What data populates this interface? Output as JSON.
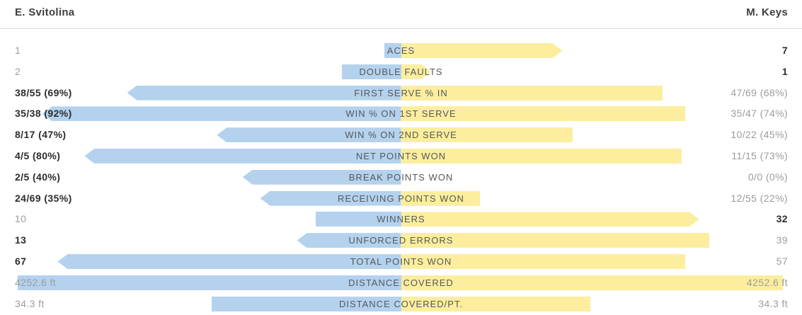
{
  "header": {
    "left_player": "E. Svitolina",
    "right_player": "M. Keys"
  },
  "colors": {
    "left_bar": "#b4d2ee",
    "right_bar": "#fcee9e",
    "label_text": "#56575b",
    "winner_text": "#2b2c2e",
    "normal_text": "#9c9c9c",
    "divider": "#e0e0e1",
    "header_text": "#3e3f42"
  },
  "chart_data": {
    "type": "bar",
    "layout": "diverging-horizontal-comparison",
    "players": [
      "E. Svitolina",
      "M. Keys"
    ],
    "note": "bar_pct is bar length as percent of the half-track; arrow marks the stat winner's pointed bar tip; style winner = bold dark value",
    "rows": [
      {
        "label": "ACES",
        "left": {
          "text": "1",
          "bar_pct": 4.4,
          "style": "normal",
          "arrow": false
        },
        "right": {
          "text": "7",
          "bar_pct": 42.1,
          "style": "winner",
          "arrow": true
        }
      },
      {
        "label": "DOUBLE FAULTS",
        "left": {
          "text": "2",
          "bar_pct": 15.5,
          "style": "normal",
          "arrow": false
        },
        "right": {
          "text": "1",
          "bar_pct": 7.9,
          "style": "winner",
          "arrow": true
        }
      },
      {
        "label": "FIRST SERVE % IN",
        "left": {
          "text": "38/55 (69%)",
          "bar_pct": 71.4,
          "style": "winner",
          "arrow": true
        },
        "right": {
          "text": "47/69 (68%)",
          "bar_pct": 68.1,
          "style": "normal",
          "arrow": false
        }
      },
      {
        "label": "WIN % ON 1ST SERVE",
        "left": {
          "text": "35/38 (92%)",
          "bar_pct": 93.5,
          "style": "winner",
          "arrow": true
        },
        "right": {
          "text": "35/47 (74%)",
          "bar_pct": 74.0,
          "style": "normal",
          "arrow": false
        }
      },
      {
        "label": "WIN % ON 2ND SERVE",
        "left": {
          "text": "8/17 (47%)",
          "bar_pct": 48.0,
          "style": "winner",
          "arrow": true
        },
        "right": {
          "text": "10/22 (45%)",
          "bar_pct": 44.8,
          "style": "normal",
          "arrow": false
        }
      },
      {
        "label": "NET POINTS WON",
        "left": {
          "text": "4/5 (80%)",
          "bar_pct": 82.5,
          "style": "winner",
          "arrow": true
        },
        "right": {
          "text": "11/15 (73%)",
          "bar_pct": 73.1,
          "style": "normal",
          "arrow": false
        }
      },
      {
        "label": "BREAK POINTS WON",
        "left": {
          "text": "2/5 (40%)",
          "bar_pct": 41.3,
          "style": "winner",
          "arrow": true
        },
        "right": {
          "text": "0/0 (0%)",
          "bar_pct": 0,
          "style": "normal",
          "arrow": false
        }
      },
      {
        "label": "RECEIVING POINTS WON",
        "left": {
          "text": "24/69 (35%)",
          "bar_pct": 36.7,
          "style": "winner",
          "arrow": true
        },
        "right": {
          "text": "12/55 (22%)",
          "bar_pct": 20.5,
          "style": "normal",
          "arrow": false
        }
      },
      {
        "label": "WINNERS",
        "left": {
          "text": "10",
          "bar_pct": 22.3,
          "style": "normal",
          "arrow": false
        },
        "right": {
          "text": "32",
          "bar_pct": 77.7,
          "style": "winner",
          "arrow": true
        }
      },
      {
        "label": "UNFORCED ERRORS",
        "left": {
          "text": "13",
          "bar_pct": 27.1,
          "style": "winner",
          "arrow": true
        },
        "right": {
          "text": "39",
          "bar_pct": 80.3,
          "style": "normal",
          "arrow": false
        }
      },
      {
        "label": "TOTAL POINTS WON",
        "left": {
          "text": "67",
          "bar_pct": 89.5,
          "style": "winner",
          "arrow": true
        },
        "right": {
          "text": "57",
          "bar_pct": 74.0,
          "style": "normal",
          "arrow": false
        }
      },
      {
        "label": "DISTANCE COVERED",
        "left": {
          "text": "4252.6 ft",
          "bar_pct": 100,
          "style": "normal",
          "arrow": false
        },
        "right": {
          "text": "4252.6 ft",
          "bar_pct": 99.6,
          "style": "normal",
          "arrow": false
        }
      },
      {
        "label": "DISTANCE COVERED/PT.",
        "left": {
          "text": "34.3 ft",
          "bar_pct": 49.3,
          "style": "normal",
          "arrow": false
        },
        "right": {
          "text": "34.3 ft",
          "bar_pct": 49.3,
          "style": "normal",
          "arrow": false
        }
      }
    ]
  }
}
